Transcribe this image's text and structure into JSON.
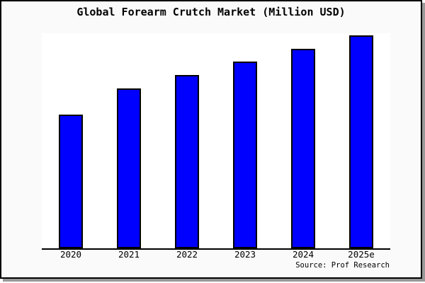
{
  "chart_data": {
    "type": "bar",
    "title": "Global Forearm Crutch Market (Million USD)",
    "categories": [
      "2020",
      "2021",
      "2022",
      "2023",
      "2024",
      "2025e"
    ],
    "values": [
      189,
      226,
      245,
      264,
      282,
      301
    ],
    "values_note": "No y-axis scale, gridlines or data labels are shown; values are relative bar heights measured in pixels from the x-axis baseline.",
    "xlabel": "",
    "ylabel": "",
    "ylim": [
      0,
      304
    ],
    "grid": false,
    "legend": false,
    "source": "Source: Prof Research",
    "colors": {
      "bar_fill": "#0000ff",
      "bar_edge": "#000000",
      "plot_background": "#ffffff",
      "figure_background": "#fafafa",
      "frame_border": "#000000",
      "frame_shadow": "#999999",
      "text": "#000000"
    }
  }
}
